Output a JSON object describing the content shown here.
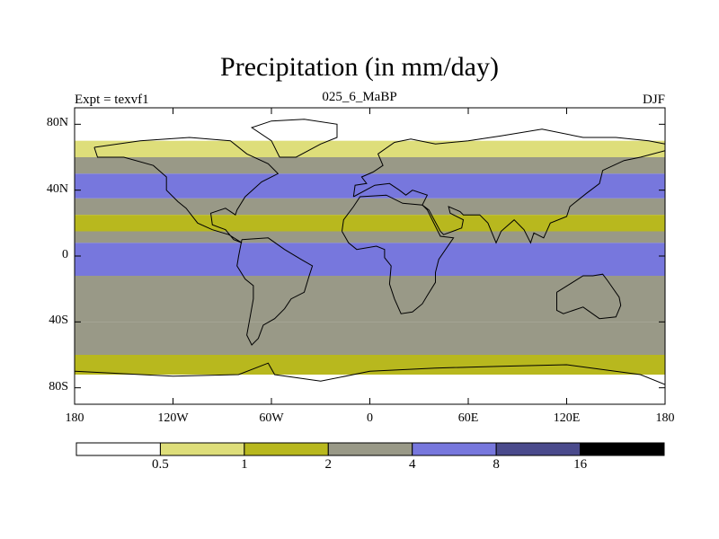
{
  "chart_data": {
    "type": "heatmap",
    "title": "Precipitation (in mm/day)",
    "left_string": "Expt = texvf1",
    "center_string": "025_6_MaBP",
    "right_string": "DJF",
    "xlim": [
      -180,
      180
    ],
    "ylim": [
      -90,
      90
    ],
    "x_ticks": [
      {
        "value": -180,
        "label": "180"
      },
      {
        "value": -120,
        "label": "120W"
      },
      {
        "value": -60,
        "label": "60W"
      },
      {
        "value": 0,
        "label": "0"
      },
      {
        "value": 60,
        "label": "60E"
      },
      {
        "value": 120,
        "label": "120E"
      },
      {
        "value": 180,
        "label": "180"
      }
    ],
    "y_ticks": [
      {
        "value": 80,
        "label": "80N"
      },
      {
        "value": 40,
        "label": "40N"
      },
      {
        "value": 0,
        "label": "0"
      },
      {
        "value": -40,
        "label": "40S"
      },
      {
        "value": -80,
        "label": "80S"
      }
    ],
    "levels": [
      0.5,
      1,
      2,
      4,
      8,
      16
    ],
    "level_labels": [
      "0.5",
      "1",
      "2",
      "4",
      "8",
      "16"
    ],
    "colors": [
      "#ffffff",
      "#dede7a",
      "#b8b81e",
      "#999987",
      "#7777dd",
      "#4a4a8c",
      "#000000"
    ],
    "zonal_bands_mm_per_day": [
      {
        "lat_range": [
          70,
          90
        ],
        "value": 0.3
      },
      {
        "lat_range": [
          60,
          70
        ],
        "value": 0.8
      },
      {
        "lat_range": [
          50,
          60
        ],
        "value": 3
      },
      {
        "lat_range": [
          35,
          50
        ],
        "value": 5
      },
      {
        "lat_range": [
          25,
          35
        ],
        "value": 2
      },
      {
        "lat_range": [
          15,
          25
        ],
        "value": 1
      },
      {
        "lat_range": [
          8,
          15
        ],
        "value": 3
      },
      {
        "lat_range": [
          -12,
          8
        ],
        "value": 6
      },
      {
        "lat_range": [
          -40,
          -12
        ],
        "value": 3
      },
      {
        "lat_range": [
          -60,
          -40
        ],
        "value": 3
      },
      {
        "lat_range": [
          -72,
          -60
        ],
        "value": 1.5
      },
      {
        "lat_range": [
          -90,
          -72
        ],
        "value": 0.3
      }
    ]
  }
}
